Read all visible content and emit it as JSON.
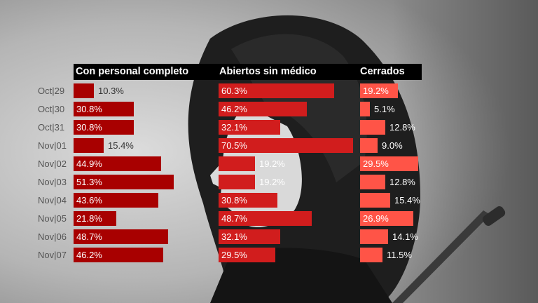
{
  "chart_data": {
    "type": "bar",
    "categories": [
      "Oct|29",
      "Oct|30",
      "Oct|31",
      "Nov|01",
      "Nov|02",
      "Nov|03",
      "Nov|04",
      "Nov|05",
      "Nov|06",
      "Nov|07"
    ],
    "series": [
      {
        "name": "Con personal completo",
        "color": "#a80000",
        "values": [
          10.3,
          30.8,
          30.8,
          15.4,
          44.9,
          51.3,
          43.6,
          21.8,
          48.7,
          46.2
        ]
      },
      {
        "name": "Abiertos sin médico",
        "color": "#d11d1d",
        "values": [
          60.3,
          46.2,
          32.1,
          70.5,
          19.2,
          19.2,
          30.8,
          48.7,
          32.1,
          29.5
        ]
      },
      {
        "name": "Cerrados",
        "color": "#ff5447",
        "values": [
          19.2,
          5.1,
          12.8,
          9.0,
          29.5,
          12.8,
          15.4,
          26.9,
          14.1,
          11.5
        ]
      }
    ],
    "value_suffix": "%",
    "orientation": "horizontal",
    "grid": false
  }
}
